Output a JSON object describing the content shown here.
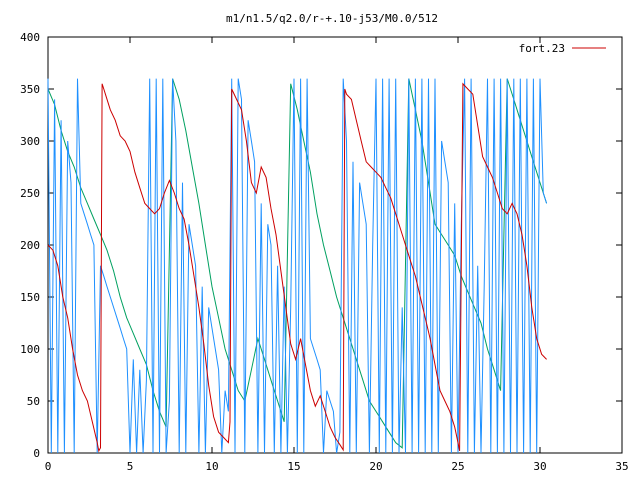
{
  "chart_data": {
    "type": "line",
    "title": "m1/n1.5/q2.0/r-+.10-j53/M0.0/512",
    "xlabel": "",
    "ylabel": "",
    "xlim": [
      0,
      35
    ],
    "ylim": [
      0,
      400
    ],
    "x_ticks": [
      0,
      5,
      10,
      15,
      20,
      25,
      30,
      35
    ],
    "y_ticks": [
      0,
      50,
      100,
      150,
      200,
      250,
      300,
      350,
      400
    ],
    "grid": false,
    "legend_position": "top-right",
    "series": [
      {
        "name": "fort.23",
        "color": "#cc0000",
        "x": [
          0.0,
          0.3,
          0.6,
          0.9,
          1.2,
          1.5,
          1.8,
          2.1,
          2.4,
          2.7,
          3.0,
          3.1,
          3.2,
          3.3,
          3.4,
          3.5,
          3.8,
          4.1,
          4.4,
          4.7,
          5.0,
          5.3,
          5.6,
          5.9,
          6.2,
          6.5,
          6.8,
          7.1,
          7.4,
          7.7,
          8.0,
          8.3,
          8.6,
          8.9,
          9.2,
          9.5,
          9.8,
          10.1,
          10.4,
          10.7,
          11.0,
          11.1,
          11.2,
          11.5,
          11.8,
          12.1,
          12.4,
          12.7,
          13.0,
          13.3,
          13.6,
          13.9,
          14.2,
          14.5,
          14.8,
          15.1,
          15.4,
          15.7,
          16.0,
          16.3,
          16.6,
          16.9,
          17.2,
          17.5,
          17.8,
          18.0,
          18.1,
          18.2,
          18.5,
          18.8,
          19.1,
          19.4,
          19.7,
          20.0,
          20.3,
          20.6,
          20.9,
          21.2,
          21.5,
          21.8,
          22.1,
          22.4,
          22.7,
          23.0,
          23.3,
          23.6,
          23.9,
          24.2,
          24.5,
          24.8,
          25.0,
          25.1,
          25.3,
          25.6,
          25.9,
          26.2,
          26.5,
          26.8,
          27.1,
          27.4,
          27.7,
          28.0,
          28.3,
          28.6,
          28.9,
          29.2,
          29.5,
          29.8,
          30.1,
          30.4
        ],
        "y": [
          200,
          195,
          180,
          150,
          130,
          100,
          75,
          60,
          50,
          30,
          10,
          2,
          5,
          355,
          350,
          345,
          330,
          320,
          305,
          300,
          290,
          270,
          255,
          240,
          235,
          230,
          235,
          250,
          262,
          250,
          235,
          225,
          200,
          170,
          140,
          105,
          65,
          35,
          20,
          15,
          10,
          30,
          350,
          340,
          330,
          300,
          260,
          250,
          275,
          265,
          235,
          210,
          175,
          140,
          105,
          90,
          110,
          85,
          60,
          45,
          55,
          40,
          25,
          15,
          8,
          3,
          350,
          345,
          340,
          320,
          300,
          280,
          275,
          270,
          265,
          255,
          245,
          230,
          215,
          200,
          185,
          170,
          150,
          130,
          110,
          85,
          60,
          50,
          40,
          25,
          10,
          2,
          355,
          350,
          345,
          315,
          285,
          275,
          265,
          250,
          235,
          230,
          240,
          230,
          210,
          180,
          140,
          110,
          95,
          90
        ]
      }
    ],
    "extra_traces": [
      {
        "color": "#00a060",
        "x": [
          0.0,
          0.4,
          0.8,
          1.2,
          1.6,
          2.0,
          2.4,
          2.8,
          3.2,
          3.6,
          4.0,
          4.4,
          4.8,
          5.2,
          5.6,
          6.0,
          6.4,
          6.8,
          7.2,
          7.6,
          8.0,
          8.4,
          8.8,
          9.2,
          9.6,
          10.0,
          10.4,
          10.8,
          11.2,
          11.6,
          12.0,
          12.4,
          12.8,
          13.2,
          13.6,
          14.0,
          14.4,
          14.8,
          15.2,
          15.6,
          16.0,
          16.4,
          16.8,
          17.2,
          17.6,
          18.0,
          18.4,
          18.8,
          19.2,
          19.6,
          20.0,
          20.4,
          20.8,
          21.2,
          21.6,
          22.0,
          22.4,
          22.8,
          23.2,
          23.6,
          24.0,
          24.4,
          24.8,
          25.2,
          25.6,
          26.0,
          26.4,
          26.8,
          27.2,
          27.6,
          28.0,
          28.4,
          28.8,
          29.2,
          29.6,
          30.0,
          30.4
        ],
        "y": [
          350,
          335,
          310,
          290,
          275,
          255,
          240,
          225,
          210,
          195,
          175,
          150,
          130,
          115,
          100,
          85,
          60,
          40,
          25,
          360,
          340,
          310,
          275,
          240,
          200,
          160,
          130,
          100,
          80,
          60,
          50,
          80,
          110,
          90,
          70,
          50,
          30,
          355,
          330,
          300,
          270,
          230,
          200,
          175,
          150,
          130,
          110,
          90,
          70,
          50,
          40,
          30,
          20,
          10,
          5,
          360,
          330,
          300,
          260,
          220,
          210,
          200,
          190,
          170,
          155,
          140,
          125,
          100,
          80,
          60,
          360,
          340,
          320,
          300,
          280,
          260,
          240
        ]
      },
      {
        "color": "#1e90ff",
        "x": [
          0.0,
          0.2,
          0.4,
          0.6,
          0.8,
          1.0,
          1.2,
          1.4,
          1.6,
          1.8,
          2.0,
          2.2,
          2.4,
          2.6,
          2.8,
          3.0,
          3.2,
          3.4,
          3.6,
          3.8,
          4.0,
          4.2,
          4.4,
          4.6,
          4.8,
          5.0,
          5.2,
          5.4,
          5.6,
          5.8,
          6.0,
          6.2,
          6.4,
          6.6,
          6.8,
          7.0,
          7.2,
          7.4,
          7.6,
          7.8,
          8.0,
          8.2,
          8.4,
          8.6,
          8.8,
          9.0,
          9.2,
          9.4,
          9.6,
          9.8,
          10.0,
          10.2,
          10.4,
          10.6,
          10.8,
          11.0,
          11.2,
          11.4,
          11.6,
          11.8,
          12.0,
          12.2,
          12.4,
          12.6,
          12.8,
          13.0,
          13.2,
          13.4,
          13.6,
          13.8,
          14.0,
          14.2,
          14.4,
          14.6,
          14.8,
          15.0,
          15.2,
          15.4,
          15.6,
          15.8,
          16.0,
          16.2,
          16.4,
          16.6,
          16.8,
          17.0,
          17.2,
          17.4,
          17.6,
          17.8,
          18.0,
          18.2,
          18.4,
          18.6,
          18.8,
          19.0,
          19.2,
          19.4,
          19.6,
          19.8,
          20.0,
          20.2,
          20.4,
          20.6,
          20.8,
          21.0,
          21.2,
          21.4,
          21.6,
          21.8,
          22.0,
          22.2,
          22.4,
          22.6,
          22.8,
          23.0,
          23.2,
          23.4,
          23.6,
          23.8,
          24.0,
          24.2,
          24.4,
          24.6,
          24.8,
          25.0,
          25.2,
          25.4,
          25.6,
          25.8,
          26.0,
          26.2,
          26.4,
          26.6,
          26.8,
          27.0,
          27.2,
          27.4,
          27.6,
          27.8,
          28.0,
          28.2,
          28.4,
          28.6,
          28.8,
          29.0,
          29.2,
          29.4,
          29.6,
          29.8,
          30.0,
          30.2,
          30.4
        ],
        "y": [
          360,
          0,
          340,
          0,
          320,
          0,
          300,
          260,
          0,
          360,
          240,
          230,
          220,
          210,
          200,
          0,
          180,
          170,
          160,
          150,
          140,
          130,
          120,
          110,
          100,
          0,
          90,
          0,
          80,
          0,
          70,
          360,
          0,
          360,
          0,
          360,
          0,
          50,
          360,
          300,
          0,
          260,
          0,
          220,
          200,
          180,
          0,
          160,
          0,
          140,
          120,
          100,
          80,
          0,
          60,
          40,
          360,
          0,
          360,
          340,
          0,
          320,
          300,
          280,
          0,
          240,
          0,
          220,
          200,
          0,
          180,
          0,
          160,
          0,
          140,
          360,
          0,
          360,
          0,
          360,
          110,
          100,
          90,
          80,
          0,
          60,
          50,
          40,
          0,
          20,
          360,
          300,
          0,
          280,
          0,
          260,
          240,
          220,
          0,
          200,
          360,
          0,
          360,
          0,
          360,
          0,
          360,
          0,
          140,
          0,
          360,
          0,
          360,
          0,
          360,
          0,
          360,
          0,
          360,
          0,
          300,
          280,
          260,
          0,
          240,
          0,
          220,
          360,
          0,
          360,
          0,
          180,
          0,
          160,
          360,
          0,
          360,
          0,
          360,
          0,
          360,
          0,
          360,
          0,
          360,
          0,
          360,
          0,
          360,
          0,
          360,
          250,
          240
        ]
      }
    ]
  }
}
